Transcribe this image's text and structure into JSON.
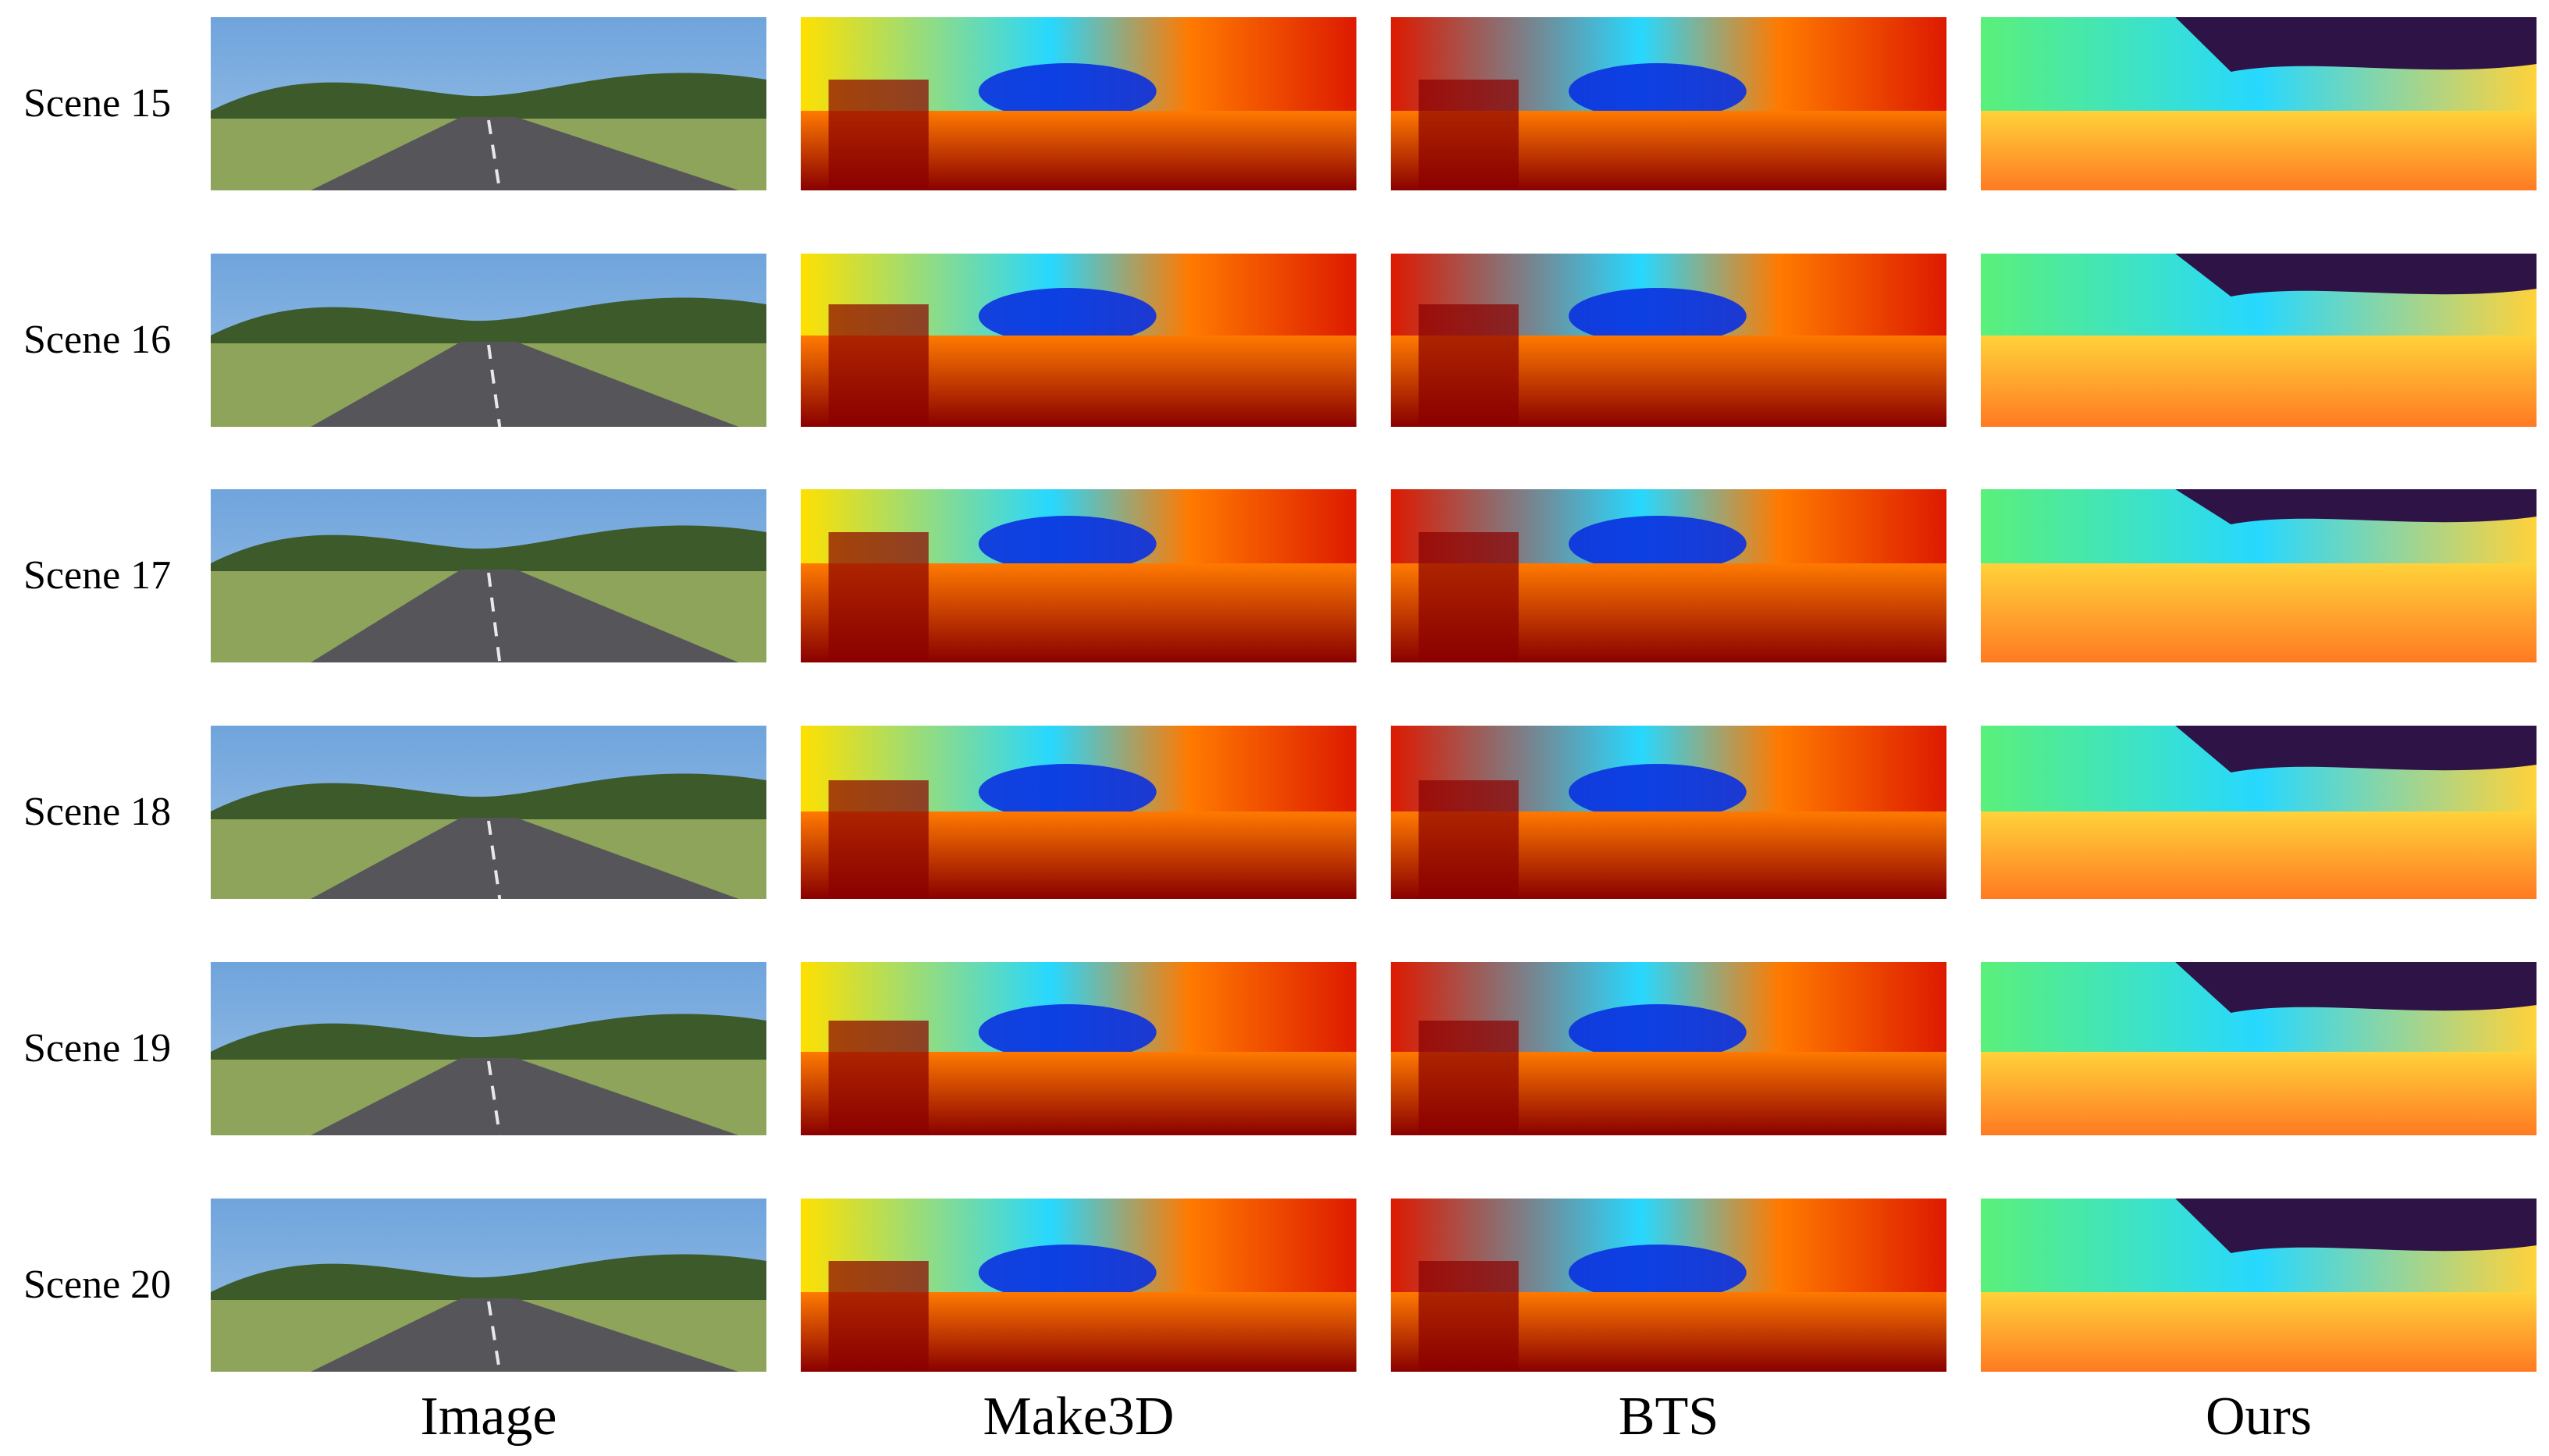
{
  "figure": {
    "columns": [
      "Image",
      "Make3D",
      "BTS",
      "Ours"
    ],
    "rows": [
      {
        "label": "Scene 15"
      },
      {
        "label": "Scene 16"
      },
      {
        "label": "Scene 17"
      },
      {
        "label": "Scene 18"
      },
      {
        "label": "Scene 19"
      },
      {
        "label": "Scene 20"
      }
    ],
    "colors": {
      "sky_blue": "#9ec3e8",
      "road_gray": "#56565a",
      "foliage": "#3c5a2a",
      "grass": "#8ea45a",
      "jet_red": "#dd1a00",
      "jet_darkred": "#8a0000",
      "jet_orange": "#ff7a00",
      "jet_yellow": "#ffe000",
      "jet_cyan": "#27d8ff",
      "jet_blue": "#0a30e0",
      "turbo_purple": "#2e1446",
      "turbo_green": "#5af07a",
      "turbo_yellow": "#ffd23a",
      "turbo_orange": "#ff7a22"
    }
  }
}
